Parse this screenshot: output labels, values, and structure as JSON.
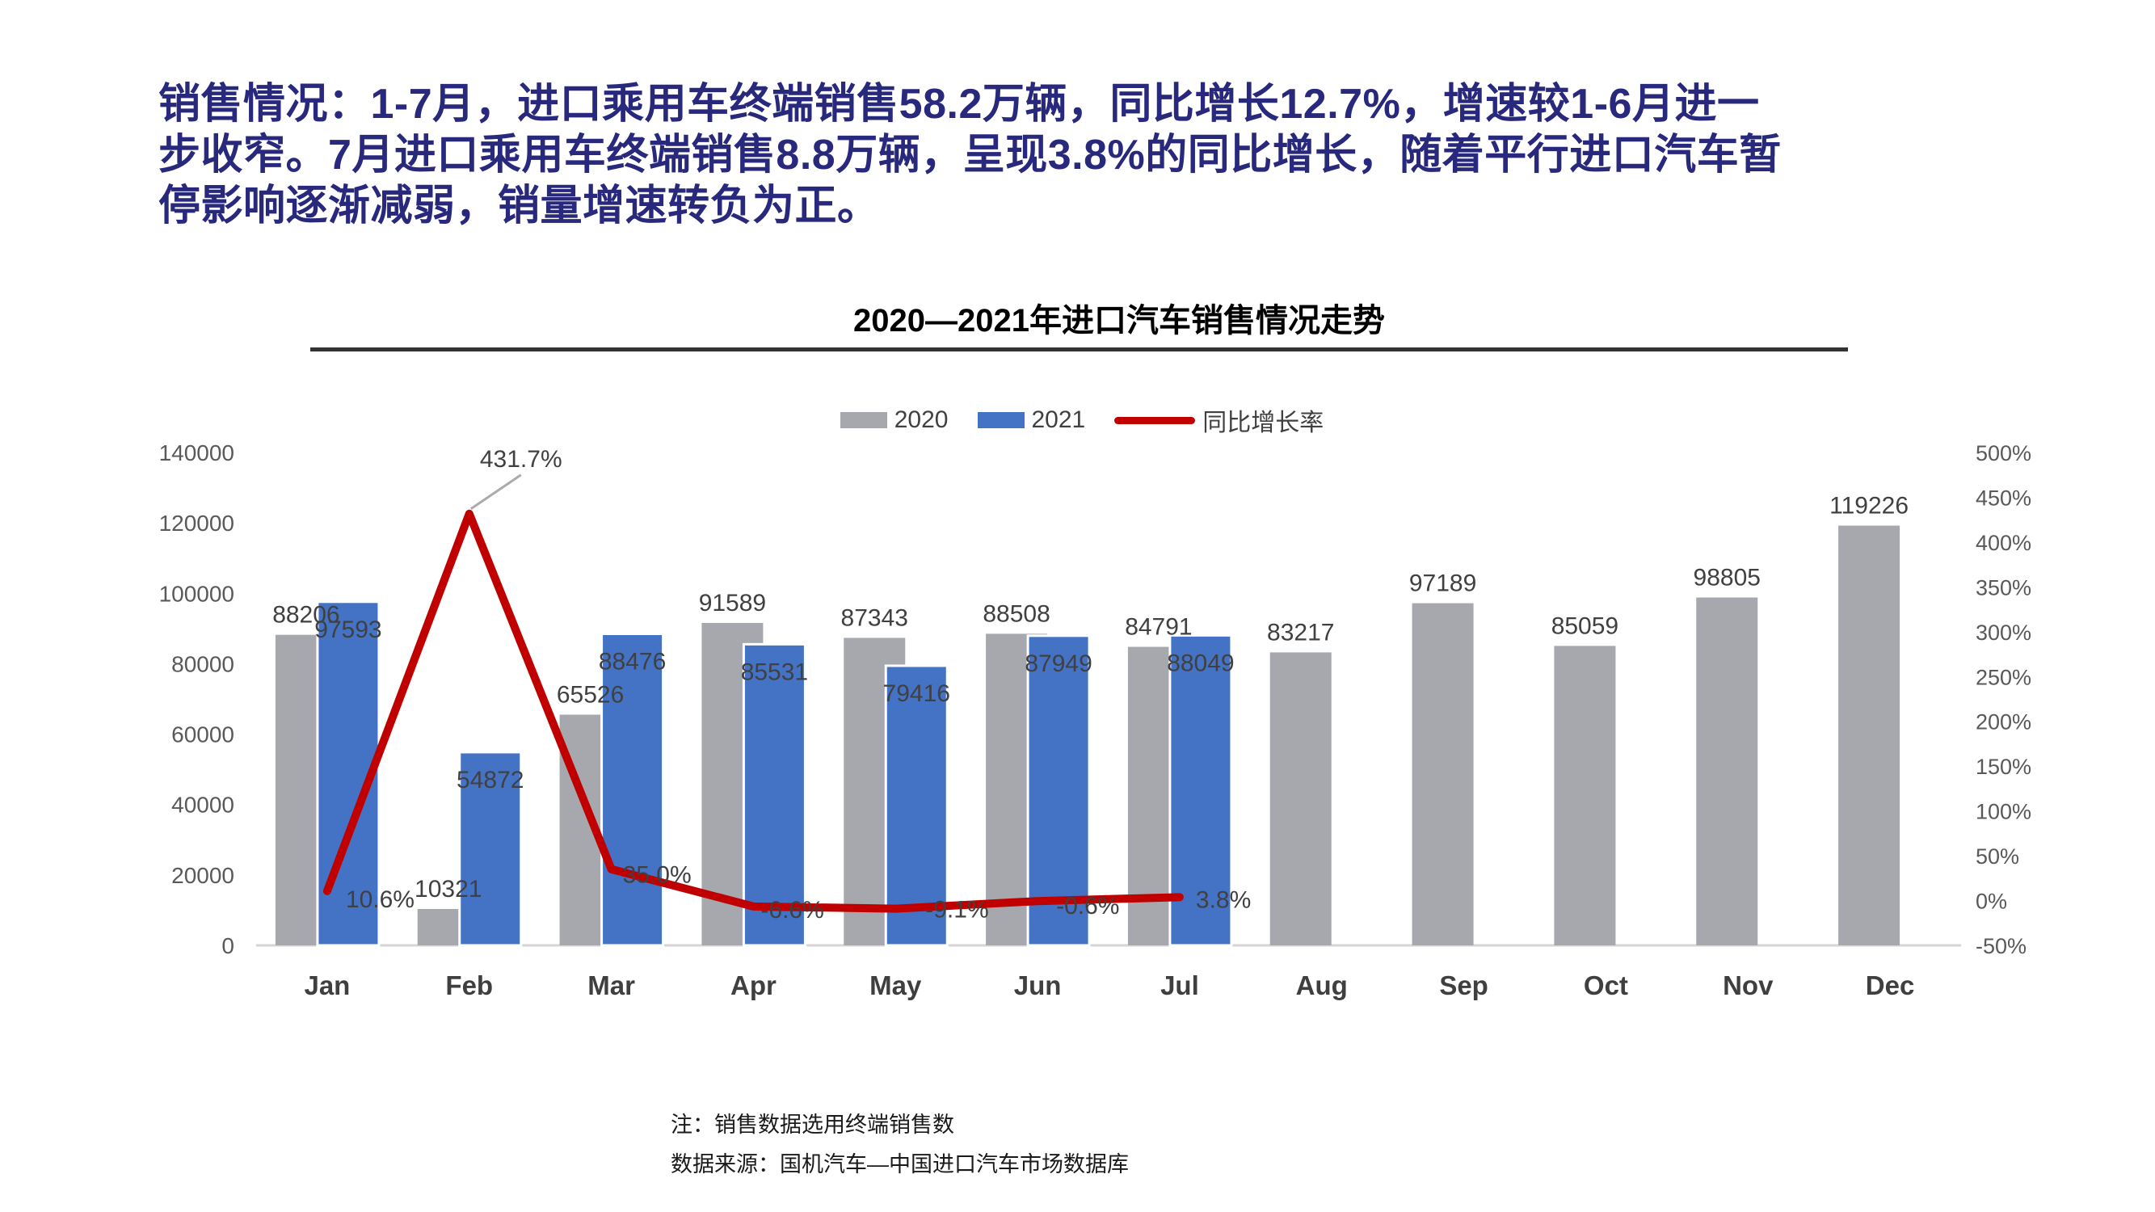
{
  "headline": {
    "color": "#28287D",
    "lines": [
      "销售情况：1-7月，进口乘用车终端销售58.2万辆，同比增长12.7%，增速较1-6月进一",
      "步收窄。7月进口乘用车终端销售8.8万辆，呈现3.8%的同比增长，随着平行进口汽车暂",
      "停影响逐渐减弱，销量增速转负为正。"
    ]
  },
  "chart_data": {
    "type": "combo-bar-line",
    "title": "2020—2021年进口汽车销售情况走势",
    "categories": [
      "Jan",
      "Feb",
      "Mar",
      "Apr",
      "May",
      "Jun",
      "Jul",
      "Aug",
      "Sep",
      "Oct",
      "Nov",
      "Dec"
    ],
    "series": [
      {
        "name": "2020",
        "type": "bar",
        "color": "#A6A8AD",
        "axis": "left",
        "values": [
          88206,
          10321,
          65526,
          91589,
          87343,
          88508,
          84791,
          83217,
          97189,
          85059,
          98805,
          119226
        ]
      },
      {
        "name": "2021",
        "type": "bar",
        "color": "#4472C4",
        "axis": "left",
        "values": [
          97593,
          54872,
          88476,
          85531,
          79416,
          87949,
          88049,
          null,
          null,
          null,
          null,
          null
        ]
      },
      {
        "name": "同比增长率",
        "type": "line",
        "color": "#C00000",
        "axis": "right",
        "values": [
          10.6,
          431.7,
          35.0,
          -6.6,
          -9.1,
          -0.6,
          3.8,
          null,
          null,
          null,
          null,
          null
        ],
        "labels": [
          "10.6%",
          "431.7%",
          "35.0%",
          "-6.6%",
          "-9.1%",
          "-0.6%",
          "3.8%"
        ]
      }
    ],
    "left_axis": {
      "min": 0,
      "max": 140000,
      "ticks": [
        "0",
        "20000",
        "40000",
        "60000",
        "80000",
        "100000",
        "120000",
        "140000"
      ]
    },
    "right_axis": {
      "min": -50,
      "max": 500,
      "ticks": [
        "-50%",
        "0%",
        "50%",
        "100%",
        "150%",
        "200%",
        "250%",
        "300%",
        "350%",
        "400%",
        "450%",
        "500%"
      ]
    },
    "legend_position": "top",
    "grid": false,
    "callout_color": "#ABABAB",
    "axis_line_color": "#D6D6D6",
    "tick_color": "#595959",
    "label_color": "#404040"
  },
  "footnotes": {
    "note": "注：销售数据选用终端销售数",
    "source": "数据来源：国机汽车—中国进口汽车市场数据库"
  }
}
